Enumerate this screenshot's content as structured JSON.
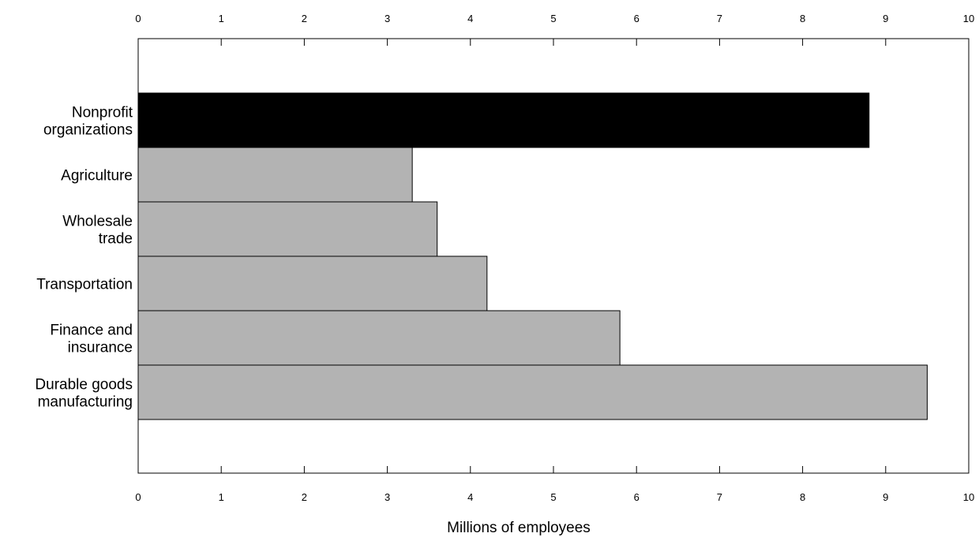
{
  "chart_data": {
    "type": "bar",
    "orientation": "horizontal",
    "title": "",
    "xlabel": "Millions of employees",
    "ylabel": "",
    "xlim": [
      0,
      10
    ],
    "xticks": [
      "0",
      "1",
      "2",
      "3",
      "4",
      "5",
      "6",
      "7",
      "8",
      "9",
      "10"
    ],
    "grid": false,
    "legend": "none",
    "categories": [
      [
        "Nonprofit",
        "organizations"
      ],
      [
        "Agriculture"
      ],
      [
        "Wholesale",
        "trade"
      ],
      [
        "Transportation"
      ],
      [
        "Finance and",
        "insurance"
      ],
      [
        "Durable goods",
        "manufacturing"
      ]
    ],
    "values": [
      8.8,
      3.3,
      3.6,
      4.2,
      5.8,
      9.5
    ],
    "colors": [
      "#000000",
      "#b3b3b3",
      "#b3b3b3",
      "#b3b3b3",
      "#b3b3b3",
      "#b3b3b3"
    ],
    "highlight_color": "#000000",
    "bar_color": "#b3b3b3"
  }
}
